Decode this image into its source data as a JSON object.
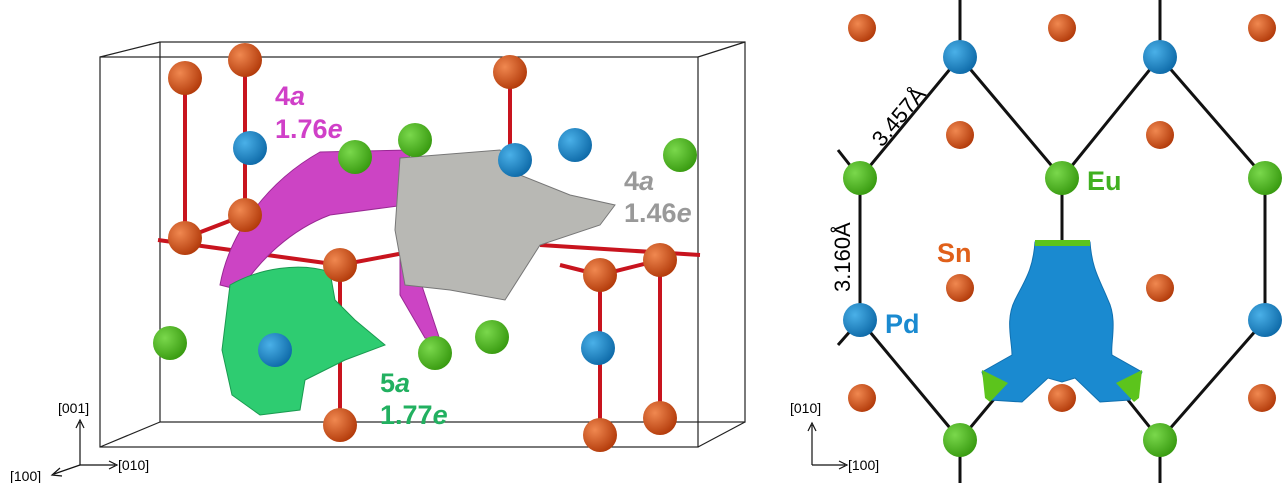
{
  "left_panel": {
    "labels": [
      {
        "site_number": "4",
        "site_letter": "a",
        "charge": "1.76",
        "charge_unit": "e"
      },
      {
        "site_number": "4",
        "site_letter": "a",
        "charge": "1.46",
        "charge_unit": "e"
      },
      {
        "site_number": "5",
        "site_letter": "a",
        "charge": "1.77",
        "charge_unit": "e"
      }
    ],
    "axes": {
      "vertical": "[001]",
      "left": "[100]",
      "right": "[010]"
    }
  },
  "right_panel": {
    "distances": [
      "3.457Å",
      "3.160Å"
    ],
    "elements": [
      "Eu",
      "Sn",
      "Pd"
    ],
    "axes": {
      "vertical": "[010]",
      "right": "[100]"
    }
  }
}
